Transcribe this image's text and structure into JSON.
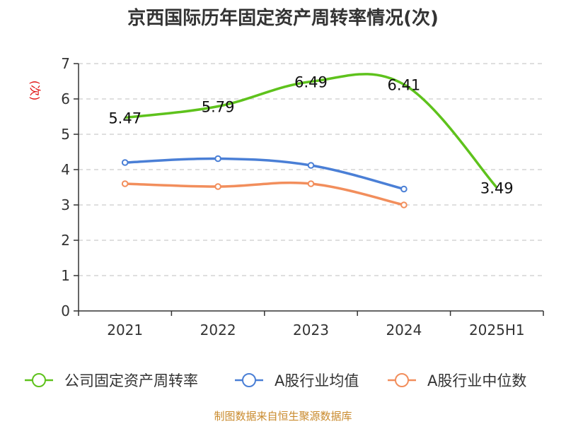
{
  "chart_data": {
    "type": "line",
    "title": "京西国际历年固定资产周转率情况(次)",
    "ylabel": "(次)",
    "xlabel": "",
    "categories": [
      "2021",
      "2022",
      "2023",
      "2024",
      "2025H1"
    ],
    "ylim": [
      0,
      7
    ],
    "yticks": [
      0,
      1,
      2,
      3,
      4,
      5,
      6,
      7
    ],
    "grid": true,
    "series": [
      {
        "name": "公司固定资产周转率",
        "color": "#5ec21c",
        "values": [
          5.47,
          5.79,
          6.49,
          6.41,
          3.49
        ],
        "labels": [
          "5.47",
          "5.79",
          "6.49",
          "6.41",
          "3.49"
        ]
      },
      {
        "name": "A股行业均值",
        "color": "#4a7fd6",
        "values": [
          4.2,
          4.31,
          4.12,
          3.45,
          null
        ]
      },
      {
        "name": "A股行业中位数",
        "color": "#f28e5c",
        "values": [
          3.6,
          3.52,
          3.6,
          3.0,
          null
        ]
      }
    ],
    "legend_position": "bottom",
    "source": "制图数据来自恒生聚源数据库"
  }
}
